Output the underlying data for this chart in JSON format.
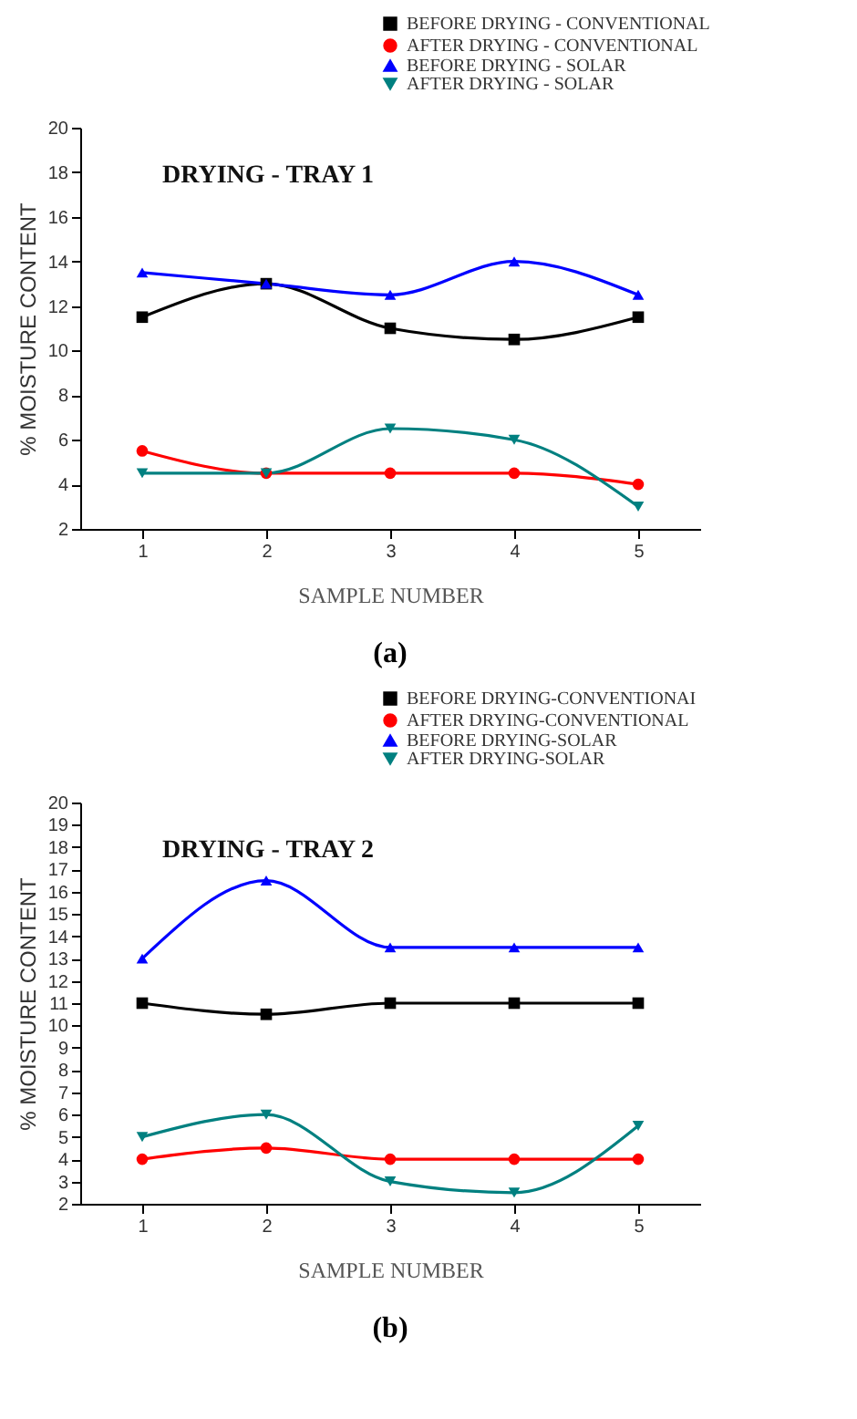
{
  "chart_data": [
    {
      "type": "line",
      "title": "DRYING - TRAY 1",
      "xlabel": "SAMPLE NUMBER",
      "ylabel": "% MOISTURE CONTENT",
      "x": [
        1,
        2,
        3,
        4,
        5
      ],
      "xlim": [
        0.5,
        5.5
      ],
      "xticks": [
        1,
        2,
        3,
        4,
        5
      ],
      "ylim": [
        2,
        20
      ],
      "yticks": [
        2,
        4,
        6,
        8,
        10,
        12,
        14,
        16,
        18,
        20
      ],
      "grid": false,
      "legend": "top right",
      "annotations": [
        "(a)"
      ],
      "series": [
        {
          "name": "BEFORE DRYING - CONVENTIONAL",
          "color": "#000000",
          "marker": "square",
          "values": [
            11.5,
            13,
            11,
            10.5,
            11.5
          ]
        },
        {
          "name": "AFTER DRYING - CONVENTIONAL",
          "color": "#ff0000",
          "marker": "circle",
          "values": [
            5.5,
            4.5,
            4.5,
            4.5,
            4
          ]
        },
        {
          "name": "BEFORE DRYING - SOLAR",
          "color": "#0000ff",
          "marker": "triangle",
          "values": [
            13.5,
            13,
            12.5,
            14,
            12.5
          ]
        },
        {
          "name": "AFTER DRYING - SOLAR",
          "color": "#008080",
          "marker": "triangle-down",
          "values": [
            4.5,
            4.5,
            6.5,
            6,
            3
          ]
        }
      ]
    },
    {
      "type": "line",
      "title": "DRYING - TRAY 2",
      "xlabel": "SAMPLE NUMBER",
      "ylabel": "% MOISTURE CONTENT",
      "x": [
        1,
        2,
        3,
        4,
        5
      ],
      "xlim": [
        0.5,
        5.5
      ],
      "xticks": [
        1,
        2,
        3,
        4,
        5
      ],
      "ylim": [
        2,
        20
      ],
      "yticks": [
        2,
        3,
        4,
        5,
        6,
        7,
        8,
        9,
        10,
        11,
        12,
        13,
        14,
        15,
        16,
        17,
        18,
        19,
        20
      ],
      "grid": false,
      "legend": "top right",
      "annotations": [
        "(b)"
      ],
      "series": [
        {
          "name": "BEFORE DRYING-CONVENTIONAI",
          "color": "#000000",
          "marker": "square",
          "values": [
            11,
            10.5,
            11,
            11,
            11
          ]
        },
        {
          "name": "AFTER DRYING-CONVENTIONAL",
          "color": "#ff0000",
          "marker": "circle",
          "values": [
            4,
            4.5,
            4,
            4,
            4
          ]
        },
        {
          "name": "BEFORE DRYING-SOLAR",
          "color": "#0000ff",
          "marker": "triangle",
          "values": [
            13,
            16.5,
            13.5,
            13.5,
            13.5
          ]
        },
        {
          "name": "AFTER DRYING-SOLAR",
          "color": "#008080",
          "marker": "triangle-down",
          "values": [
            5,
            6,
            3,
            2.5,
            5.5
          ]
        }
      ]
    }
  ]
}
